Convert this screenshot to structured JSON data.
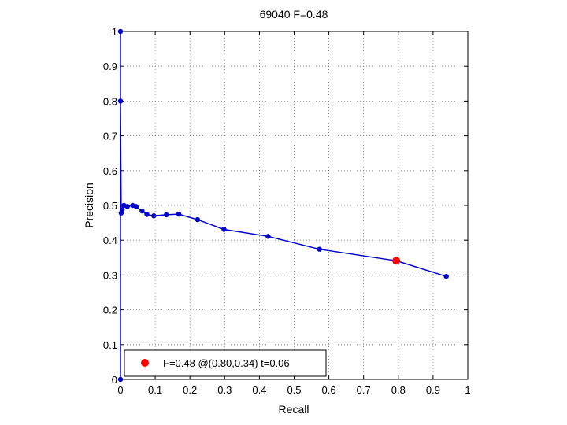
{
  "chart_data": {
    "type": "line",
    "title": "69040 F=0.48",
    "xlabel": "Recall",
    "ylabel": "Precision",
    "xlim": [
      0,
      1
    ],
    "ylim": [
      0,
      1
    ],
    "xticks": [
      "0",
      "0.1",
      "0.2",
      "0.3",
      "0.4",
      "0.5",
      "0.6",
      "0.7",
      "0.8",
      "0.9",
      "1"
    ],
    "yticks": [
      "0",
      "0.1",
      "0.2",
      "0.3",
      "0.4",
      "0.5",
      "0.6",
      "0.7",
      "0.8",
      "0.9",
      "1"
    ],
    "grid": true,
    "series": [
      {
        "x": [
          0,
          0,
          0,
          0.002,
          0.005,
          0.01,
          0.02,
          0.035,
          0.045,
          0.062,
          0.076,
          0.096,
          0.132,
          0.168,
          0.222,
          0.298,
          0.425,
          0.573,
          0.794,
          0.938
        ],
        "y": [
          0,
          1,
          0.8,
          0.478,
          0.488,
          0.5,
          0.497,
          0.5,
          0.497,
          0.484,
          0.474,
          0.47,
          0.473,
          0.475,
          0.459,
          0.431,
          0.411,
          0.374,
          0.341,
          0.296
        ],
        "color": "#0000cc"
      }
    ],
    "highlight": {
      "x": 0.794,
      "y": 0.341,
      "color": "#ff0000",
      "label": "F=0.48 @(0.80,0.34) t=0.06"
    },
    "legend_position": "bottom-left"
  }
}
